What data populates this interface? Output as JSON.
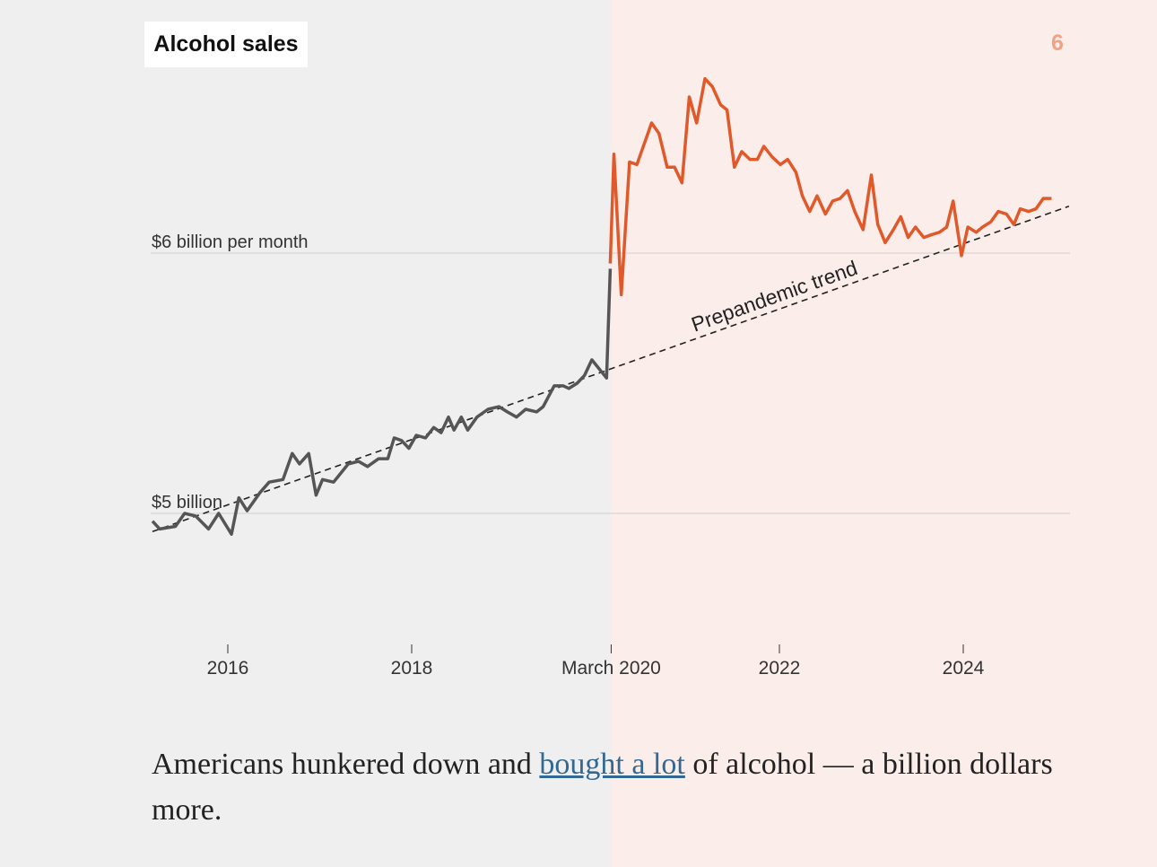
{
  "header": {
    "title": "Alcohol sales",
    "step_number": "6"
  },
  "caption": {
    "before": "Americans hunkered down and ",
    "link": "bought a lot",
    "after": " of alcohol — a billion dollars more."
  },
  "colors": {
    "prepandemic": "#555555",
    "pandemic": "#e0592a",
    "trend": "#222222",
    "bg_left": "#efefef",
    "bg_right": "#fbede9"
  },
  "chart_data": {
    "type": "line",
    "title": "Alcohol sales",
    "xlabel": "",
    "ylabel": "",
    "y_unit": "billion dollars per month",
    "ylim": [
      4.5,
      6.9
    ],
    "xlim": [
      2015.18,
      2025.15
    ],
    "y_gridlines": [
      {
        "value": 6,
        "label": "$6 billion per month"
      },
      {
        "value": 5,
        "label": "$5 billion"
      }
    ],
    "x_ticks": [
      {
        "value": 2016,
        "label": "2016"
      },
      {
        "value": 2018,
        "label": "2018"
      },
      {
        "value": 2020.17,
        "label": "March 2020"
      },
      {
        "value": 2022,
        "label": "2022"
      },
      {
        "value": 2024,
        "label": "2024"
      }
    ],
    "shading_split": 2020.17,
    "trend": {
      "label": "Prepandemic trend",
      "x": [
        2015.18,
        2025.15
      ],
      "y": [
        4.93,
        6.18
      ]
    },
    "series": [
      {
        "key": "prepandemic",
        "x": [
          2015.18,
          2015.26,
          2015.43,
          2015.53,
          2015.65,
          2015.79,
          2015.9,
          2016.04,
          2016.12,
          2016.21,
          2016.35,
          2016.45,
          2016.6,
          2016.7,
          2016.78,
          2016.88,
          2016.96,
          2017.03,
          2017.15,
          2017.31,
          2017.42,
          2017.52,
          2017.64,
          2017.74,
          2017.81,
          2017.89,
          2017.97,
          2018.05,
          2018.15,
          2018.24,
          2018.32,
          2018.4,
          2018.46,
          2018.54,
          2018.61,
          2018.71,
          2018.83,
          2018.95,
          2019.04,
          2019.14,
          2019.24,
          2019.36,
          2019.43,
          2019.55,
          2019.65,
          2019.71,
          2019.8,
          2019.88,
          2019.96,
          2020.12,
          2020.16
        ],
        "y": [
          4.97,
          4.94,
          4.95,
          5.0,
          4.99,
          4.94,
          5.0,
          4.92,
          5.06,
          5.01,
          5.08,
          5.12,
          5.13,
          5.23,
          5.19,
          5.23,
          5.07,
          5.13,
          5.12,
          5.19,
          5.2,
          5.18,
          5.21,
          5.21,
          5.29,
          5.28,
          5.25,
          5.3,
          5.29,
          5.33,
          5.31,
          5.37,
          5.32,
          5.37,
          5.32,
          5.37,
          5.4,
          5.41,
          5.39,
          5.37,
          5.4,
          5.39,
          5.41,
          5.49,
          5.49,
          5.48,
          5.5,
          5.53,
          5.59,
          5.52,
          5.94
        ]
      },
      {
        "key": "pandemic",
        "x": [
          2020.16,
          2020.2,
          2020.28,
          2020.37,
          2020.45,
          2020.61,
          2020.69,
          2020.78,
          2020.86,
          2020.94,
          2021.02,
          2021.1,
          2021.19,
          2021.27,
          2021.36,
          2021.43,
          2021.51,
          2021.59,
          2021.68,
          2021.76,
          2021.83,
          2021.92,
          2022.01,
          2022.09,
          2022.18,
          2022.25,
          2022.33,
          2022.41,
          2022.5,
          2022.58,
          2022.66,
          2022.74,
          2022.82,
          2022.91,
          2023.0,
          2023.07,
          2023.15,
          2023.24,
          2023.32,
          2023.4,
          2023.48,
          2023.57,
          2023.65,
          2023.74,
          2023.82,
          2023.89,
          2023.98,
          2024.05,
          2024.14,
          2024.21,
          2024.3,
          2024.38,
          2024.47,
          2024.55,
          2024.62,
          2024.71,
          2024.79,
          2024.87,
          2024.96
        ],
        "y": [
          5.96,
          6.38,
          5.84,
          6.35,
          6.34,
          6.5,
          6.46,
          6.33,
          6.33,
          6.27,
          6.6,
          6.5,
          6.67,
          6.64,
          6.57,
          6.55,
          6.33,
          6.39,
          6.36,
          6.36,
          6.41,
          6.37,
          6.34,
          6.36,
          6.31,
          6.22,
          6.16,
          6.22,
          6.15,
          6.2,
          6.21,
          6.24,
          6.16,
          6.09,
          6.3,
          6.11,
          6.04,
          6.09,
          6.14,
          6.06,
          6.1,
          6.06,
          6.07,
          6.08,
          6.1,
          6.2,
          5.99,
          6.1,
          6.08,
          6.1,
          6.12,
          6.16,
          6.15,
          6.11,
          6.17,
          6.16,
          6.17,
          6.21,
          6.21
        ]
      }
    ]
  }
}
